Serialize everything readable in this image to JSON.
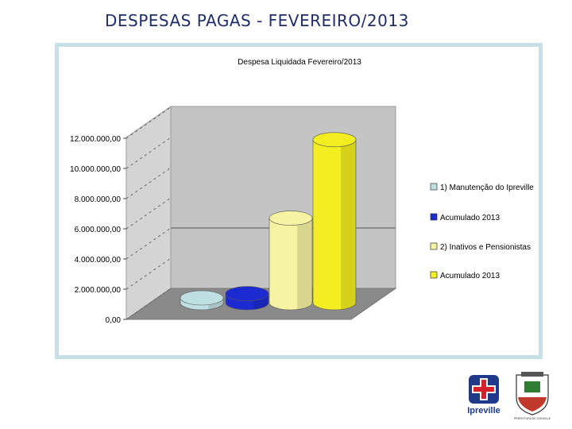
{
  "slide": {
    "title": "DESPESAS PAGAS - FEVEREIRO/2013"
  },
  "colors": {
    "frame": "#c7dfe6",
    "wall": "#c4c4c4",
    "floor": "#8a8a8a",
    "s1": "#bfe0e3",
    "s2": "#1c2bd1",
    "s3": "#f6f3a2",
    "s4": "#f3ee1f"
  },
  "chart_data": {
    "type": "bar",
    "title": "Despesa Liquidada Fevereiro/2013",
    "ylim": [
      0,
      12000000
    ],
    "yticks": [
      {
        "value": 0,
        "label": "0,00"
      },
      {
        "value": 2000000,
        "label": "2.000.000,00"
      },
      {
        "value": 4000000,
        "label": "4.000.000,00"
      },
      {
        "value": 6000000,
        "label": "6.000.000,00"
      },
      {
        "value": 8000000,
        "label": "8.000.000,00"
      },
      {
        "value": 10000000,
        "label": "10.000.000,00"
      },
      {
        "value": 12000000,
        "label": "12.000.000,00"
      }
    ],
    "legend_position": "right",
    "series": [
      {
        "name": "1) Manutenção do Ipreville",
        "value": 300000,
        "color": "#bfe0e3"
      },
      {
        "name": "Acumulado 2013",
        "value": 600000,
        "color": "#1c2bd1"
      },
      {
        "name": "2) Inativos e Pensionistas",
        "value": 5600000,
        "color": "#f6f3a2"
      },
      {
        "name": "Acumulado 2013",
        "value": 10800000,
        "color": "#f3ee1f"
      }
    ]
  },
  "logos": {
    "ipreville_text": "Ipreville",
    "prefeitura_text": "PREFEITURA DE JOINVILLE"
  }
}
